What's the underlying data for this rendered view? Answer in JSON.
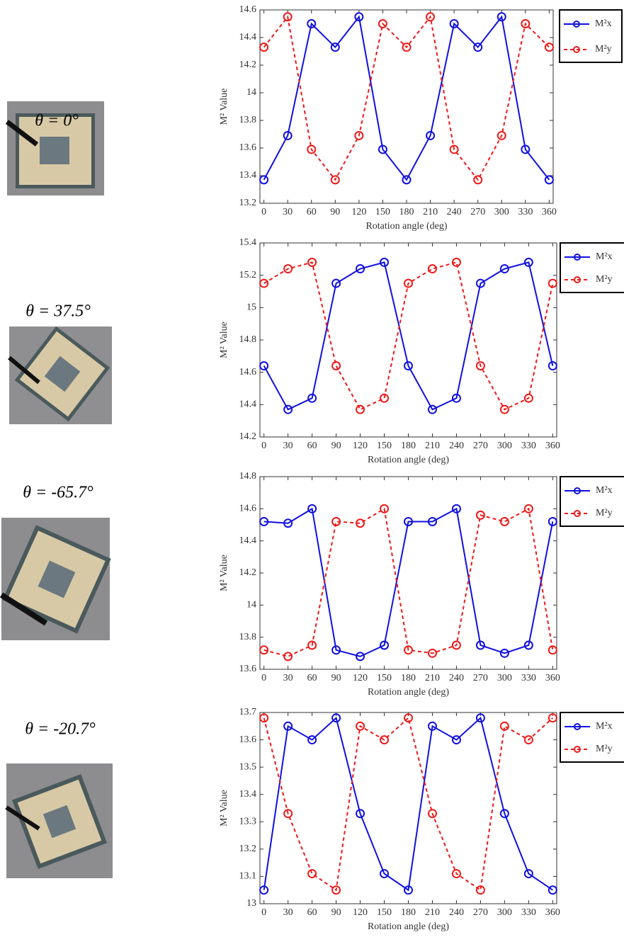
{
  "chart_data": [
    {
      "type": "line",
      "annotation": "θ = 0°",
      "x_label": "Rotation angle (deg)",
      "y_label": "M² Value",
      "x": [
        0,
        30,
        60,
        90,
        120,
        150,
        180,
        210,
        240,
        270,
        300,
        330,
        360
      ],
      "series": [
        {
          "name": "M²x",
          "color": "#1010e0",
          "line_style": "solid",
          "values": [
            13.37,
            13.69,
            14.5,
            14.33,
            14.55,
            13.59,
            13.37,
            13.69,
            14.5,
            14.33,
            14.55,
            13.59,
            13.37
          ]
        },
        {
          "name": "M²y",
          "color": "#ee1a1a",
          "line_style": "dashed",
          "values": [
            14.33,
            14.55,
            13.59,
            13.37,
            13.69,
            14.5,
            14.33,
            14.55,
            13.59,
            13.37,
            13.69,
            14.5,
            14.33
          ]
        }
      ],
      "xlim": [
        -5,
        365
      ],
      "xticks": [
        0,
        30,
        60,
        90,
        120,
        150,
        180,
        210,
        240,
        270,
        300,
        330,
        360
      ],
      "ylim": [
        13.2,
        14.6
      ],
      "yticks": [
        13.2,
        13.4,
        13.6,
        13.8,
        14,
        14.2,
        14.4,
        14.6
      ],
      "legend": "outside-right"
    },
    {
      "type": "line",
      "annotation": "θ = 37.5°",
      "x_label": "Rotation angle (deg)",
      "y_label": "M² Value",
      "x": [
        0,
        30,
        60,
        90,
        120,
        150,
        180,
        210,
        240,
        270,
        300,
        330,
        360
      ],
      "series": [
        {
          "name": "M²x",
          "color": "#1010e0",
          "line_style": "solid",
          "values": [
            14.64,
            14.37,
            14.44,
            15.15,
            15.24,
            15.28,
            14.64,
            14.37,
            14.44,
            15.15,
            15.24,
            15.28,
            14.64
          ]
        },
        {
          "name": "M²y",
          "color": "#ee1a1a",
          "line_style": "dashed",
          "values": [
            15.15,
            15.24,
            15.28,
            14.64,
            14.37,
            14.44,
            15.15,
            15.24,
            15.28,
            14.64,
            14.37,
            14.44,
            15.15
          ]
        }
      ],
      "xlim": [
        -5,
        365
      ],
      "xticks": [
        0,
        30,
        60,
        90,
        120,
        150,
        180,
        210,
        240,
        270,
        300,
        330,
        360
      ],
      "ylim": [
        14.2,
        15.4
      ],
      "yticks": [
        14.2,
        14.4,
        14.6,
        14.8,
        15,
        15.2,
        15.4
      ],
      "legend": "outside-right"
    },
    {
      "type": "line",
      "annotation": "θ = -65.7°",
      "x_label": "Rotation angle (deg)",
      "y_label": "M² Value",
      "x": [
        0,
        30,
        60,
        90,
        120,
        150,
        180,
        210,
        240,
        270,
        300,
        330,
        360
      ],
      "series": [
        {
          "name": "M²x",
          "color": "#1010e0",
          "line_style": "solid",
          "values": [
            14.52,
            14.51,
            14.6,
            13.72,
            13.68,
            13.75,
            14.52,
            14.52,
            14.6,
            13.75,
            13.7,
            13.75,
            14.52
          ]
        },
        {
          "name": "M²y",
          "color": "#ee1a1a",
          "line_style": "dashed",
          "values": [
            13.72,
            13.68,
            13.75,
            14.52,
            14.51,
            14.6,
            13.72,
            13.7,
            13.75,
            14.56,
            14.52,
            14.6,
            13.72
          ]
        }
      ],
      "xlim": [
        -5,
        365
      ],
      "xticks": [
        0,
        30,
        60,
        90,
        120,
        150,
        180,
        210,
        240,
        270,
        300,
        330,
        360
      ],
      "ylim": [
        13.6,
        14.8
      ],
      "yticks": [
        13.6,
        13.8,
        14,
        14.2,
        14.4,
        14.6,
        14.8
      ],
      "legend": "outside-right"
    },
    {
      "type": "line",
      "annotation": "θ = -20.7°",
      "x_label": "Rotation angle (deg)",
      "y_label": "M² Value",
      "x": [
        0,
        30,
        60,
        90,
        120,
        150,
        180,
        210,
        240,
        270,
        300,
        330,
        360
      ],
      "series": [
        {
          "name": "M²x",
          "color": "#1010e0",
          "line_style": "solid",
          "values": [
            13.05,
            13.65,
            13.6,
            13.68,
            13.33,
            13.11,
            13.05,
            13.65,
            13.6,
            13.68,
            13.33,
            13.11,
            13.05
          ]
        },
        {
          "name": "M²y",
          "color": "#ee1a1a",
          "line_style": "dashed",
          "values": [
            13.68,
            13.33,
            13.11,
            13.05,
            13.65,
            13.6,
            13.68,
            13.33,
            13.11,
            13.05,
            13.65,
            13.6,
            13.68
          ]
        }
      ],
      "xlim": [
        -5,
        365
      ],
      "xticks": [
        0,
        30,
        60,
        90,
        120,
        150,
        180,
        210,
        240,
        270,
        300,
        330,
        360
      ],
      "ylim": [
        13,
        13.7
      ],
      "yticks": [
        13,
        13.1,
        13.2,
        13.3,
        13.4,
        13.5,
        13.6,
        13.7
      ],
      "legend": "outside-right"
    }
  ]
}
